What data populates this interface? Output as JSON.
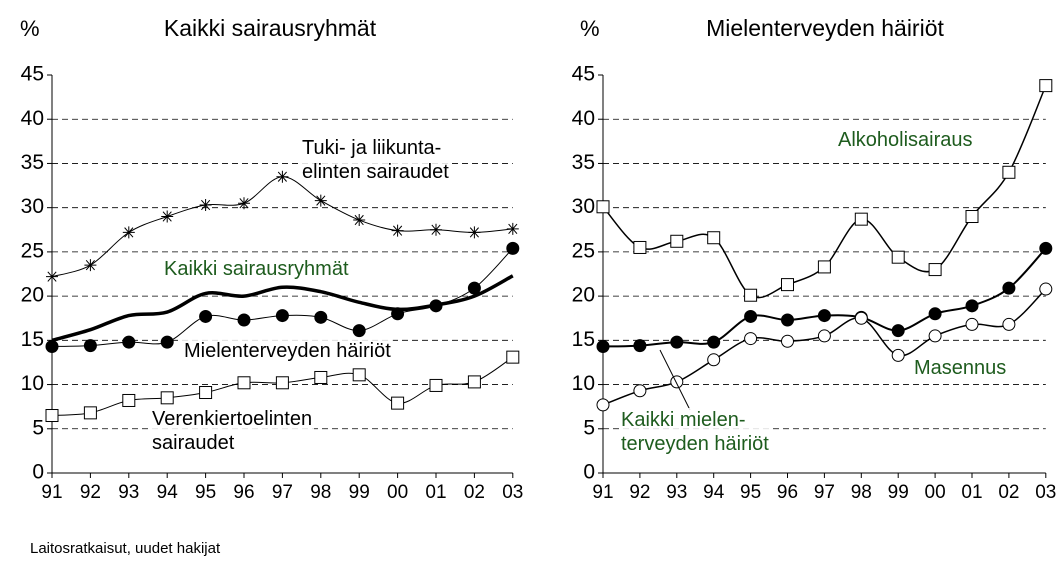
{
  "chart_data": [
    {
      "type": "line",
      "title": "Kaikki sairausryhmät",
      "y_label": "%",
      "categories": [
        "91",
        "92",
        "93",
        "94",
        "95",
        "96",
        "97",
        "98",
        "99",
        "00",
        "01",
        "02",
        "03"
      ],
      "ylim": [
        0,
        45
      ],
      "yticks": [
        0,
        5,
        10,
        15,
        20,
        25,
        30,
        35,
        40,
        45
      ],
      "grid": true,
      "series": [
        {
          "name": "Tuki- ja liikunta-\nelinten sairaudet",
          "color": "#000000",
          "label_color": "#000000",
          "marker": "star",
          "line_width": 1,
          "values": [
            22.2,
            23.5,
            27.2,
            29,
            30.3,
            30.5,
            33.5,
            30.8,
            28.6,
            27.4,
            27.5,
            27.2,
            27.6
          ]
        },
        {
          "name": "Kaikki sairausryhmät",
          "color": "#000000",
          "label_color": "#1e5c1e",
          "marker": "none",
          "line_width": 3.5,
          "values": [
            15,
            16.2,
            17.8,
            18.2,
            20.3,
            20,
            21,
            20.5,
            19.3,
            18.5,
            19,
            20,
            22.3
          ]
        },
        {
          "name": "Mielenterveyden häiriöt",
          "color": "#000000",
          "label_color": "#000000",
          "marker": "filled-circle",
          "line_width": 1,
          "values": [
            14.3,
            14.4,
            14.8,
            14.8,
            17.7,
            17.3,
            17.8,
            17.6,
            16.1,
            18,
            18.9,
            20.9,
            25.4
          ]
        },
        {
          "name": "Verenkiertoelinten\nsairaudet",
          "color": "#000000",
          "label_color": "#000000",
          "marker": "square",
          "line_width": 1,
          "values": [
            6.5,
            6.8,
            8.2,
            8.5,
            9.1,
            10.2,
            10.2,
            10.8,
            11.1,
            7.9,
            9.9,
            10.3,
            13.1
          ]
        }
      ]
    },
    {
      "type": "line",
      "title": "Mielenterveyden häiriöt",
      "y_label": "%",
      "categories": [
        "91",
        "92",
        "93",
        "94",
        "95",
        "96",
        "97",
        "98",
        "99",
        "00",
        "01",
        "02",
        "03"
      ],
      "ylim": [
        0,
        45
      ],
      "yticks": [
        0,
        5,
        10,
        15,
        20,
        25,
        30,
        35,
        40,
        45
      ],
      "grid": true,
      "series": [
        {
          "name": "Alkoholisairaus",
          "color": "#000000",
          "label_color": "#1e5c1e",
          "marker": "square",
          "line_width": 1.5,
          "values": [
            30.1,
            25.5,
            26.2,
            26.6,
            20.1,
            21.3,
            23.3,
            28.7,
            24.4,
            23,
            29,
            34,
            43.8
          ]
        },
        {
          "name": "Kaikki mielen-\nterveyden häiriöt",
          "color": "#000000",
          "label_color": "#1e5c1e",
          "marker": "filled-circle",
          "line_width": 2,
          "values": [
            14.3,
            14.4,
            14.8,
            14.8,
            17.7,
            17.3,
            17.8,
            17.6,
            16.1,
            18,
            18.9,
            20.9,
            25.4
          ]
        },
        {
          "name": "Masennus",
          "color": "#000000",
          "label_color": "#1e5c1e",
          "marker": "circle",
          "line_width": 1.5,
          "values": [
            7.7,
            9.3,
            10.3,
            12.8,
            15.2,
            14.9,
            15.5,
            17.5,
            13.3,
            15.5,
            16.8,
            16.8,
            20.8
          ]
        }
      ]
    }
  ],
  "footer": "Laitosratkaisut, uudet hakijat"
}
